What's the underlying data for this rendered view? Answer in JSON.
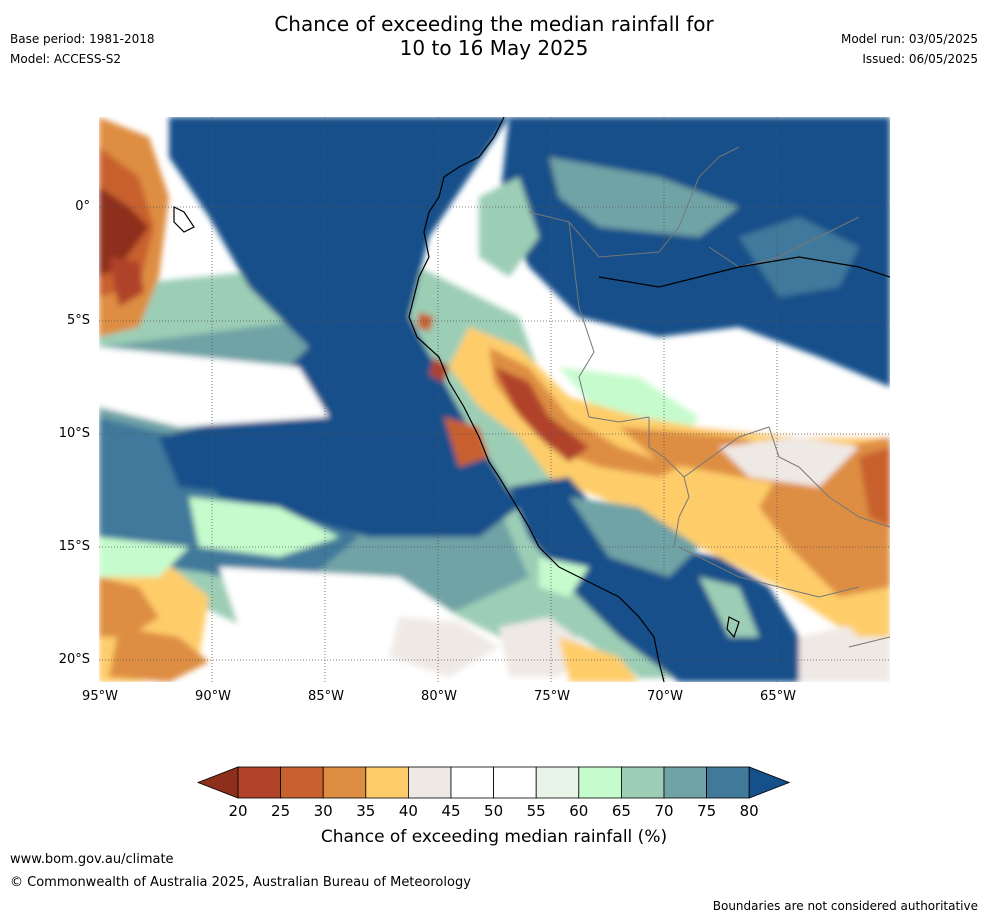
{
  "title_line1": "Chance of exceeding the median rainfall for",
  "title_line2": "10 to 16 May 2025",
  "meta_left": {
    "base_period": "Base period: 1981-2018",
    "model": "Model: ACCESS-S2"
  },
  "meta_right": {
    "model_run": "Model run: 03/05/2025",
    "issued": "Issued: 06/05/2025"
  },
  "lat_labels": [
    "0°",
    "5°S",
    "10°S",
    "15°S",
    "20°S"
  ],
  "lon_labels": [
    "95°W",
    "90°W",
    "85°W",
    "80°W",
    "75°W",
    "70°W",
    "65°W"
  ],
  "colorbar": {
    "ticks": [
      "20",
      "25",
      "30",
      "35",
      "40",
      "45",
      "50",
      "55",
      "60",
      "65",
      "70",
      "75",
      "80"
    ],
    "colors": [
      "#8e2f1b",
      "#b0432a",
      "#c8602f",
      "#de8e42",
      "#fecd6a",
      "#efe9e5",
      "#ffffff",
      "#ffffff",
      "#e8f4e8",
      "#c6fbcd",
      "#9cceb6",
      "#6fa3a6",
      "#41799b",
      "#14508a"
    ],
    "label": "Chance of exceeding median rainfall (%)"
  },
  "footer": {
    "url": "www.bom.gov.au/climate",
    "copyright": "© Commonwealth of Australia 2025, Australian Bureau of Meteorology",
    "note": "Boundaries are not considered authoritative"
  }
}
